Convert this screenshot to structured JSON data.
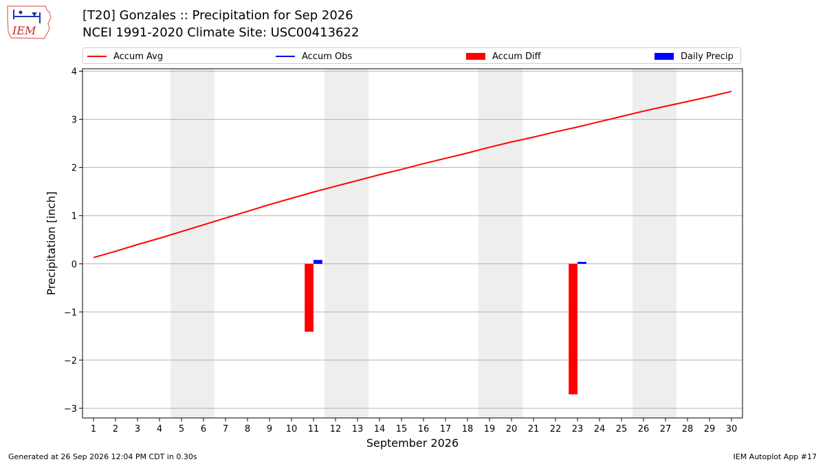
{
  "header": {
    "logo_text": "IEM",
    "title_line1": "[T20] Gonzales :: Precipitation for Sep 2026",
    "title_line2": "NCEI 1991-2020 Climate Site: USC00413622"
  },
  "legend": {
    "items": [
      {
        "label": "Accum Avg",
        "kind": "line",
        "color": "#ff0000"
      },
      {
        "label": "Accum Obs",
        "kind": "line",
        "color": "#0000ff"
      },
      {
        "label": "Accum Diff",
        "kind": "box",
        "color": "#ff0000"
      },
      {
        "label": "Daily Precip",
        "kind": "box",
        "color": "#0000ff"
      }
    ]
  },
  "footer": {
    "left": "Generated at 26 Sep 2026 12:04 PM CDT in 0.30s",
    "right": "IEM Autoplot App #17"
  },
  "chart_data": {
    "type": "bar",
    "xlabel": "September 2026",
    "ylabel": "Precipitation [inch]",
    "xlim": [
      0.5,
      30.5
    ],
    "ylim": [
      -3.2,
      4.05
    ],
    "x_ticks": [
      1,
      2,
      3,
      4,
      5,
      6,
      7,
      8,
      9,
      10,
      11,
      12,
      13,
      14,
      15,
      16,
      17,
      18,
      19,
      20,
      21,
      22,
      23,
      24,
      25,
      26,
      27,
      28,
      29,
      30
    ],
    "y_ticks": [
      -3,
      -2,
      -1,
      0,
      1,
      2,
      3,
      4
    ],
    "y_tick_labels": [
      "−3",
      "−2",
      "−1",
      "0",
      "1",
      "2",
      "3",
      "4"
    ],
    "grid": "horizontal",
    "legend_placement": "top",
    "weekend_shading": [
      [
        4.5,
        6.5
      ],
      [
        11.5,
        13.5
      ],
      [
        18.5,
        20.5
      ],
      [
        25.5,
        27.5
      ]
    ],
    "accum_avg": {
      "name": "Accum Avg",
      "color": "#ff0000",
      "x": [
        1,
        2,
        3,
        4,
        5,
        6,
        7,
        8,
        9,
        10,
        11,
        12,
        13,
        14,
        15,
        16,
        17,
        18,
        19,
        20,
        21,
        22,
        23,
        24,
        25,
        26,
        27,
        28,
        29,
        30
      ],
      "y": [
        0.13,
        0.26,
        0.4,
        0.53,
        0.67,
        0.81,
        0.95,
        1.09,
        1.23,
        1.36,
        1.49,
        1.61,
        1.73,
        1.85,
        1.96,
        2.08,
        2.19,
        2.3,
        2.42,
        2.53,
        2.63,
        2.74,
        2.84,
        2.95,
        3.06,
        3.17,
        3.27,
        3.37,
        3.47,
        3.58
      ]
    },
    "accum_diff": {
      "name": "Accum Diff",
      "color": "#ff0000",
      "x": [
        11,
        23
      ],
      "values": [
        -1.41,
        -2.71
      ]
    },
    "daily_precip": {
      "name": "Daily Precip",
      "color": "#0000ff",
      "x": [
        11,
        23
      ],
      "values": [
        0.08,
        0.04
      ]
    }
  }
}
